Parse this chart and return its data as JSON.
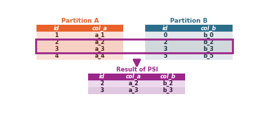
{
  "partition_a_title": "Partition A",
  "partition_b_title": "Partition B",
  "result_title": "Result of PSI",
  "partition_a_header": [
    "id",
    "col_a"
  ],
  "partition_a_rows": [
    [
      "1",
      "a_1"
    ],
    [
      "2",
      "a_2"
    ],
    [
      "3",
      "a_3"
    ],
    [
      "4",
      "a_4"
    ]
  ],
  "partition_b_header": [
    "id",
    "col_b"
  ],
  "partition_b_rows": [
    [
      "0",
      "b_0"
    ],
    [
      "2",
      "b_2"
    ],
    [
      "3",
      "b_3"
    ],
    [
      "5",
      "b_5"
    ]
  ],
  "result_header": [
    "id",
    "col_a",
    "col_b"
  ],
  "result_rows": [
    [
      "2",
      "a_2",
      "b_2"
    ],
    [
      "3",
      "a_3",
      "b_3"
    ]
  ],
  "color_a_header": "#E8622A",
  "color_a_row_light": "#FBE0D8",
  "color_a_row_lighter": "#F7D0C4",
  "color_b_header": "#2B6E8C",
  "color_b_row_light": "#E2E8EC",
  "color_b_row_lighter": "#D0D8DC",
  "color_result_header": "#9B2789",
  "color_result_row_light": "#EDD8ED",
  "color_result_row_lighter": "#E0C8E0",
  "color_intersect_border": "#9B2789",
  "color_arrow": "#9B2789",
  "color_title_a": "#E8622A",
  "color_title_b": "#2B6E8C",
  "color_title_result": "#9B2789",
  "bg_color": "#FFFFFF",
  "header_text_color": "#FFFFFF",
  "body_text_color_a": "#5A2010",
  "body_text_color_b": "#1A3040",
  "body_text_color_result": "#3A1040"
}
